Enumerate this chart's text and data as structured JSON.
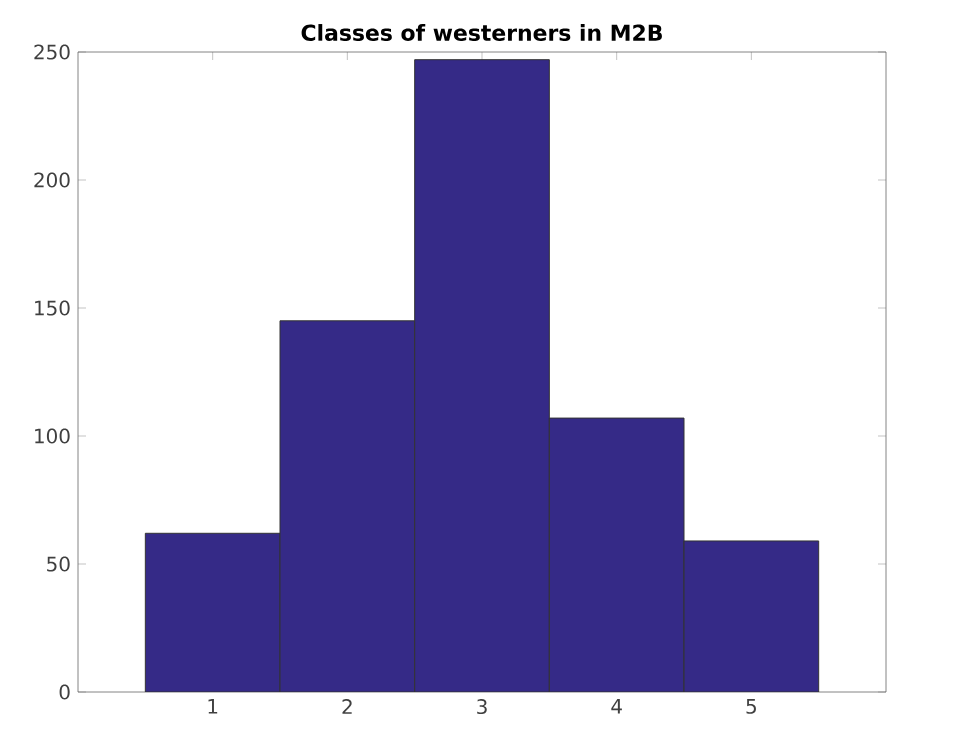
{
  "chart_data": {
    "type": "histogram",
    "title": "Classes of westerners in M2B",
    "bins": [
      0.5,
      1.5,
      2.5,
      3.5,
      4.5,
      5.5
    ],
    "values": [
      62,
      145,
      247,
      107,
      59
    ],
    "color": "#352a87",
    "xlim": [
      0,
      6
    ],
    "xticks": [
      1,
      2,
      3,
      4,
      5
    ],
    "ylim": [
      0,
      250
    ],
    "yticks": [
      0,
      50,
      100,
      150,
      200,
      250
    ],
    "grid": false
  }
}
